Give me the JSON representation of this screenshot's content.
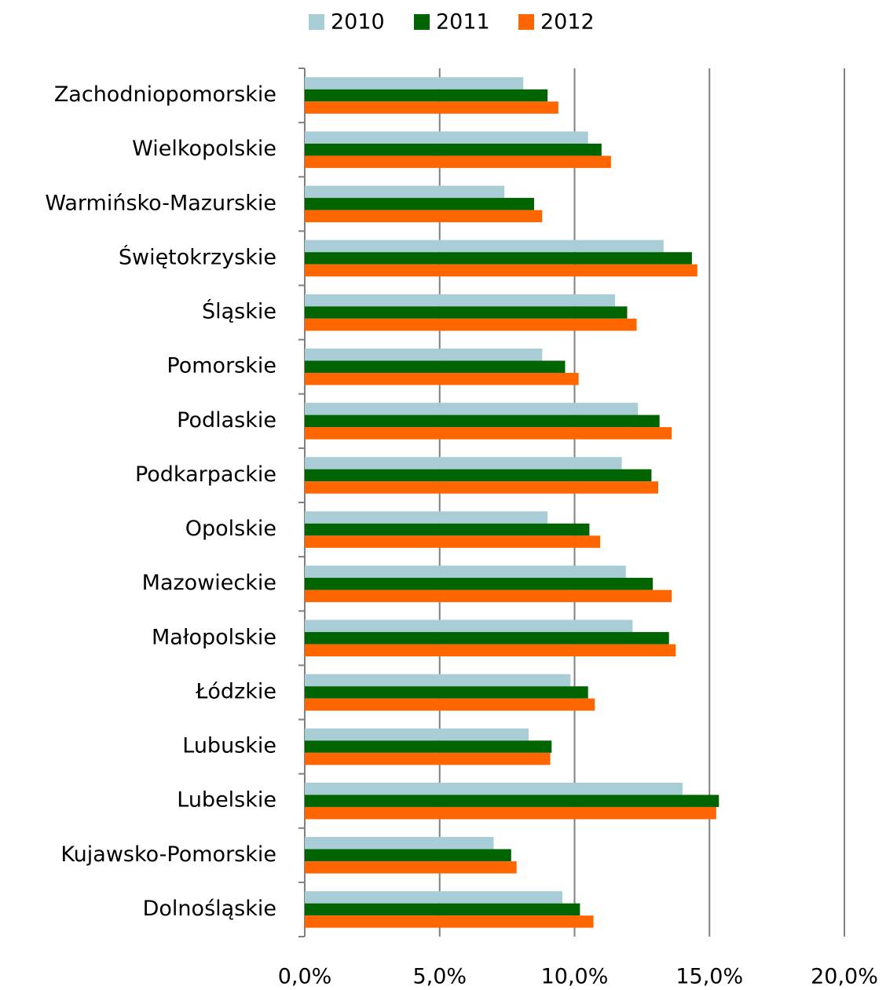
{
  "chart_data": {
    "type": "bar",
    "orientation": "horizontal",
    "categories": [
      "Zachodniopomorskie",
      "Wielkopolskie",
      "Warmińsko-Mazurskie",
      "Świętokrzyskie",
      "Śląskie",
      "Pomorskie",
      "Podlaskie",
      "Podkarpackie",
      "Opolskie",
      "Mazowieckie",
      "Małopolskie",
      "Łódzkie",
      "Lubuskie",
      "Lubelskie",
      "Kujawsko-Pomorskie",
      "Dolnośląskie"
    ],
    "series": [
      {
        "name": "2010",
        "color": "#a9cdd6",
        "values": [
          8.1,
          10.5,
          7.4,
          13.3,
          11.5,
          8.8,
          12.35,
          11.75,
          9.0,
          11.9,
          12.15,
          9.85,
          8.3,
          14.0,
          7.0,
          9.55
        ]
      },
      {
        "name": "2011",
        "color": "#006400",
        "values": [
          9.0,
          11.0,
          8.5,
          14.35,
          11.95,
          9.65,
          13.15,
          12.85,
          10.55,
          12.9,
          13.5,
          10.5,
          9.15,
          15.35,
          7.65,
          10.2
        ]
      },
      {
        "name": "2012",
        "color": "#ff6600",
        "values": [
          9.4,
          11.35,
          8.8,
          14.55,
          12.3,
          10.15,
          13.6,
          13.1,
          10.95,
          13.6,
          13.75,
          10.75,
          9.1,
          15.25,
          7.85,
          10.7
        ]
      }
    ],
    "xlim": [
      0,
      20
    ],
    "xticks": [
      {
        "value": 0,
        "label": "0,0%"
      },
      {
        "value": 5,
        "label": "5,0%"
      },
      {
        "value": 10,
        "label": "10,0%"
      },
      {
        "value": 15,
        "label": "15,0%"
      },
      {
        "value": 20,
        "label": "20,0%"
      }
    ],
    "grid": true,
    "legend": "top"
  }
}
